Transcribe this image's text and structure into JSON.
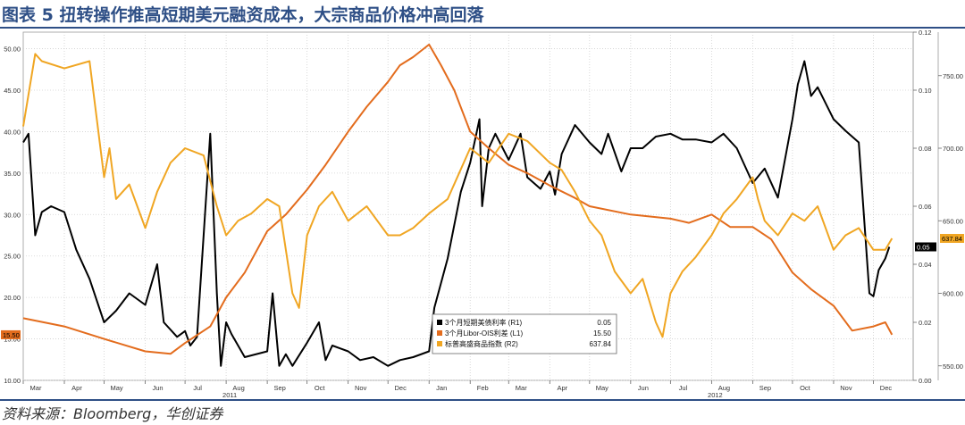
{
  "header": {
    "title": "图表 5 扭转操作推高短期美元融资成本，大宗商品价格冲高回落"
  },
  "footer": {
    "source": "资料来源：Bloomberg，华创证券"
  },
  "chart_data": {
    "type": "line",
    "x_range": [
      "2011-03-01",
      "2012-12-31"
    ],
    "x_ticks": [
      {
        "date": "2011-03-01",
        "label": "Mar"
      },
      {
        "date": "2011-04-01",
        "label": "Apr"
      },
      {
        "date": "2011-05-01",
        "label": "May"
      },
      {
        "date": "2011-06-01",
        "label": "Jun"
      },
      {
        "date": "2011-07-01",
        "label": "Jul"
      },
      {
        "date": "2011-08-01",
        "label": "Aug"
      },
      {
        "date": "2011-09-01",
        "label": "Sep"
      },
      {
        "date": "2011-10-01",
        "label": "Oct"
      },
      {
        "date": "2011-11-01",
        "label": "Nov"
      },
      {
        "date": "2011-12-01",
        "label": "Dec"
      },
      {
        "date": "2012-01-01",
        "label": "Jan"
      },
      {
        "date": "2012-02-01",
        "label": "Feb"
      },
      {
        "date": "2012-03-01",
        "label": "Mar"
      },
      {
        "date": "2012-04-01",
        "label": "Apr"
      },
      {
        "date": "2012-05-01",
        "label": "May"
      },
      {
        "date": "2012-06-01",
        "label": "Jun"
      },
      {
        "date": "2012-07-01",
        "label": "Jul"
      },
      {
        "date": "2012-08-01",
        "label": "Aug"
      },
      {
        "date": "2012-09-01",
        "label": "Sep"
      },
      {
        "date": "2012-10-01",
        "label": "Oct"
      },
      {
        "date": "2012-11-01",
        "label": "Nov"
      },
      {
        "date": "2012-12-01",
        "label": "Dec"
      }
    ],
    "year_labels": [
      {
        "date": "2011-08-01",
        "label": "2011"
      },
      {
        "date": "2012-08-01",
        "label": "2012"
      }
    ],
    "axes": {
      "left": {
        "min": 10,
        "max": 52,
        "ticks": [
          "10.00",
          "15.00",
          "20.00",
          "25.00",
          "30.00",
          "35.00",
          "40.00",
          "45.00",
          "50.00"
        ]
      },
      "right_inner": {
        "min": 0,
        "max": 0.12,
        "ticks": [
          "0.00",
          "0.02",
          "0.04",
          "0.06",
          "0.08",
          "0.10",
          "0.12"
        ]
      },
      "right_outer": {
        "min": 540,
        "max": 780,
        "ticks": [
          "550.00",
          "600.00",
          "650.00",
          "700.00",
          "750.00"
        ]
      }
    },
    "grid": true,
    "legend_position": "bottom-center",
    "series": [
      {
        "name": "3个月短期美债利率 (R1)",
        "last": "0.05",
        "axis": "right_inner",
        "color": "#000000",
        "x": [
          "2011-03-01",
          "2011-03-05",
          "2011-03-10",
          "2011-03-15",
          "2011-03-22",
          "2011-04-01",
          "2011-04-10",
          "2011-04-20",
          "2011-05-01",
          "2011-05-10",
          "2011-05-20",
          "2011-06-01",
          "2011-06-10",
          "2011-06-15",
          "2011-06-25",
          "2011-07-01",
          "2011-07-05",
          "2011-07-10",
          "2011-07-15",
          "2011-07-20",
          "2011-07-25",
          "2011-07-28",
          "2011-08-01",
          "2011-08-05",
          "2011-08-15",
          "2011-09-01",
          "2011-09-05",
          "2011-09-10",
          "2011-09-15",
          "2011-09-20",
          "2011-10-01",
          "2011-10-10",
          "2011-10-15",
          "2011-10-20",
          "2011-11-01",
          "2011-11-10",
          "2011-11-20",
          "2011-12-01",
          "2011-12-10",
          "2011-12-20",
          "2012-01-01",
          "2012-01-05",
          "2012-01-15",
          "2012-01-25",
          "2012-02-01",
          "2012-02-08",
          "2012-02-10",
          "2012-02-15",
          "2012-02-20",
          "2012-03-01",
          "2012-03-10",
          "2012-03-15",
          "2012-03-25",
          "2012-04-01",
          "2012-04-05",
          "2012-04-10",
          "2012-04-20",
          "2012-05-01",
          "2012-05-10",
          "2012-05-15",
          "2012-05-25",
          "2012-06-01",
          "2012-06-10",
          "2012-06-20",
          "2012-07-01",
          "2012-07-10",
          "2012-07-20",
          "2012-08-01",
          "2012-08-10",
          "2012-08-20",
          "2012-09-01",
          "2012-09-10",
          "2012-09-20",
          "2012-10-01",
          "2012-10-05",
          "2012-10-10",
          "2012-10-15",
          "2012-10-20",
          "2012-11-01",
          "2012-11-10",
          "2012-11-20",
          "2012-11-28",
          "2012-12-01",
          "2012-12-05",
          "2012-12-10",
          "2012-12-13"
        ],
        "y": [
          0.082,
          0.085,
          0.05,
          0.058,
          0.06,
          0.058,
          0.045,
          0.035,
          0.02,
          0.024,
          0.03,
          0.026,
          0.04,
          0.02,
          0.015,
          0.017,
          0.012,
          0.015,
          0.05,
          0.085,
          0.03,
          0.005,
          0.02,
          0.016,
          0.008,
          0.01,
          0.03,
          0.005,
          0.009,
          0.005,
          0.013,
          0.02,
          0.007,
          0.012,
          0.01,
          0.007,
          0.008,
          0.005,
          0.007,
          0.008,
          0.01,
          0.025,
          0.042,
          0.065,
          0.075,
          0.09,
          0.06,
          0.08,
          0.085,
          0.076,
          0.085,
          0.07,
          0.066,
          0.072,
          0.064,
          0.078,
          0.088,
          0.082,
          0.078,
          0.085,
          0.072,
          0.08,
          0.08,
          0.084,
          0.085,
          0.083,
          0.083,
          0.082,
          0.085,
          0.08,
          0.068,
          0.073,
          0.063,
          0.09,
          0.102,
          0.11,
          0.098,
          0.101,
          0.09,
          0.086,
          0.082,
          0.03,
          0.029,
          0.038,
          0.042,
          0.046
        ]
      },
      {
        "name": "3个月Libor-OIS利差 (L1)",
        "last": "15.50",
        "axis": "left",
        "color": "#e36c1d",
        "x": [
          "2011-03-01",
          "2011-04-01",
          "2011-05-01",
          "2011-06-01",
          "2011-06-20",
          "2011-07-01",
          "2011-07-20",
          "2011-08-01",
          "2011-08-15",
          "2011-09-01",
          "2011-09-15",
          "2011-10-01",
          "2011-10-15",
          "2011-11-01",
          "2011-11-15",
          "2011-12-01",
          "2011-12-10",
          "2011-12-20",
          "2012-01-01",
          "2012-01-10",
          "2012-01-20",
          "2012-02-01",
          "2012-02-15",
          "2012-03-01",
          "2012-03-15",
          "2012-04-01",
          "2012-04-20",
          "2012-05-01",
          "2012-06-01",
          "2012-07-01",
          "2012-07-15",
          "2012-08-01",
          "2012-08-15",
          "2012-09-01",
          "2012-09-15",
          "2012-10-01",
          "2012-10-15",
          "2012-11-01",
          "2012-11-15",
          "2012-12-01",
          "2012-12-10",
          "2012-12-15"
        ],
        "y": [
          17.5,
          16.5,
          15.0,
          13.5,
          13.2,
          14.5,
          16.5,
          20.0,
          23.0,
          28.0,
          30.0,
          33.0,
          36.0,
          40.0,
          43.0,
          46.0,
          48.0,
          49.0,
          50.5,
          48.0,
          45.0,
          40.0,
          38.0,
          36.0,
          35.0,
          33.5,
          32.0,
          31.0,
          30.0,
          29.5,
          29.0,
          30.0,
          28.5,
          28.5,
          27.0,
          23.0,
          21.0,
          19.0,
          16.0,
          16.5,
          17.0,
          15.5
        ]
      },
      {
        "name": "标普高盛商品指数 (R2)",
        "last": "637.84",
        "axis": "right_outer",
        "color": "#f0a623",
        "x": [
          "2011-03-01",
          "2011-03-10",
          "2011-03-15",
          "2011-04-01",
          "2011-04-20",
          "2011-05-01",
          "2011-05-05",
          "2011-05-10",
          "2011-05-20",
          "2011-06-01",
          "2011-06-10",
          "2011-06-20",
          "2011-07-01",
          "2011-07-15",
          "2011-07-25",
          "2011-08-01",
          "2011-08-10",
          "2011-08-20",
          "2011-09-01",
          "2011-09-10",
          "2011-09-20",
          "2011-09-25",
          "2011-10-01",
          "2011-10-10",
          "2011-10-20",
          "2011-11-01",
          "2011-11-15",
          "2011-12-01",
          "2011-12-10",
          "2011-12-20",
          "2012-01-01",
          "2012-01-15",
          "2012-02-01",
          "2012-02-15",
          "2012-03-01",
          "2012-03-15",
          "2012-04-01",
          "2012-04-10",
          "2012-04-20",
          "2012-05-01",
          "2012-05-10",
          "2012-05-20",
          "2012-06-01",
          "2012-06-10",
          "2012-06-20",
          "2012-06-25",
          "2012-07-01",
          "2012-07-10",
          "2012-07-20",
          "2012-08-01",
          "2012-08-10",
          "2012-08-20",
          "2012-09-01",
          "2012-09-05",
          "2012-09-10",
          "2012-09-20",
          "2012-10-01",
          "2012-10-10",
          "2012-10-20",
          "2012-11-01",
          "2012-11-10",
          "2012-11-20",
          "2012-12-01",
          "2012-12-10",
          "2012-12-15"
        ],
        "y": [
          715,
          765,
          760,
          755,
          760,
          680,
          700,
          665,
          675,
          645,
          670,
          690,
          700,
          695,
          660,
          640,
          650,
          655,
          665,
          660,
          600,
          590,
          640,
          660,
          670,
          650,
          660,
          640,
          640,
          645,
          655,
          665,
          700,
          690,
          710,
          705,
          690,
          685,
          670,
          650,
          640,
          615,
          600,
          610,
          580,
          570,
          600,
          615,
          625,
          640,
          655,
          665,
          680,
          665,
          650,
          640,
          655,
          650,
          660,
          630,
          640,
          645,
          630,
          630,
          637.84
        ]
      }
    ]
  }
}
